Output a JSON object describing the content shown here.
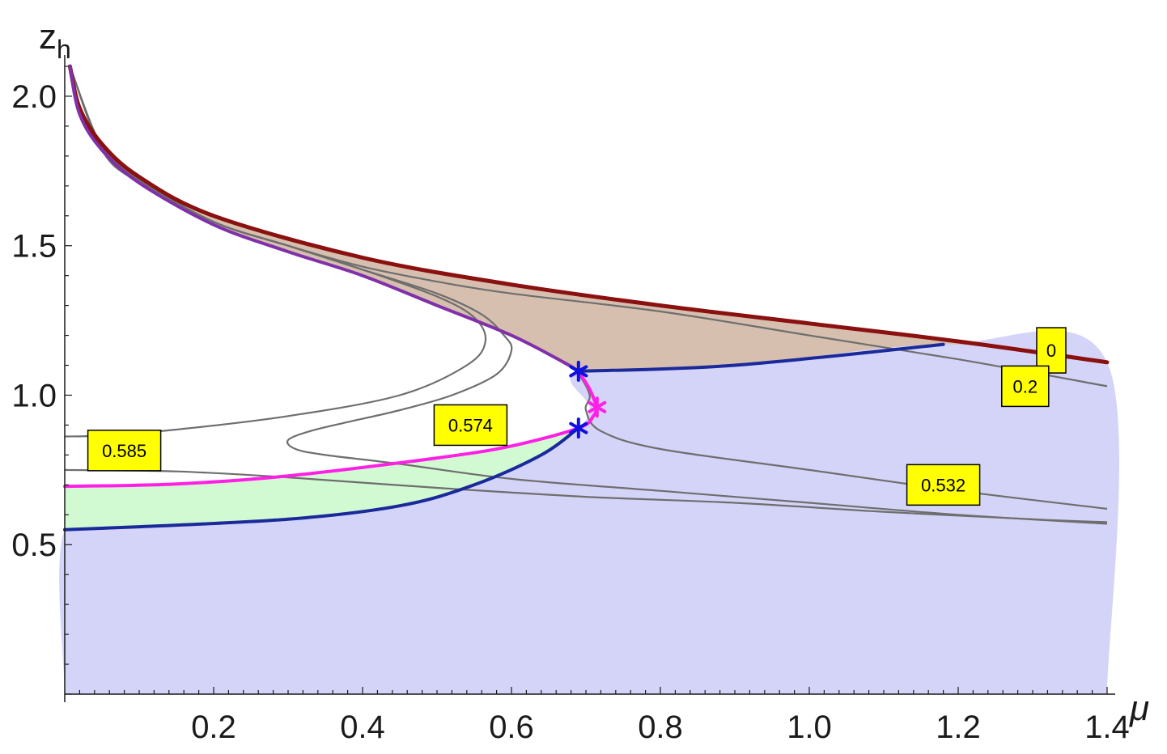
{
  "chart_data": {
    "type": "line",
    "xlabel": "μ",
    "ylabel": "z",
    "ylabel_sub": "h",
    "xlim": [
      0,
      1.4
    ],
    "ylim": [
      0,
      2.1
    ],
    "x_ticks": [
      0.2,
      0.4,
      0.6,
      0.8,
      1.0,
      1.2,
      1.4
    ],
    "x_tick_labels": [
      "0.2",
      "0.4",
      "0.6",
      "0.8",
      "1.0",
      "1.2",
      "1.4"
    ],
    "y_ticks": [
      0.5,
      1.0,
      1.5,
      2.0
    ],
    "y_tick_labels": [
      "0.5",
      "1.0",
      "1.5",
      "2.0"
    ],
    "grid": false,
    "colors": {
      "blue_region": "#d4d4f8",
      "green_region": "#d2fad2",
      "tan_region": "#d6bfae",
      "red_curve": "#8b1010",
      "blue_curve": "#1a2a9a",
      "magenta_curve": "#ff20e6",
      "purple_curve": "#8030a8",
      "contour": "#6e6e6e",
      "blue_marker": "#1010e0",
      "magenta_marker": "#ff20e6",
      "label_bg": "#ffff00"
    },
    "regions": [
      {
        "color": "blue_region",
        "points": [
          [
            0,
            0
          ],
          [
            0,
            0.55
          ],
          [
            0.1,
            0.56
          ],
          [
            0.3,
            0.585
          ],
          [
            0.45,
            0.63
          ],
          [
            0.55,
            0.7
          ],
          [
            0.64,
            0.8
          ],
          [
            0.69,
            0.89
          ],
          [
            0.705,
            0.96
          ],
          [
            0.69,
            1.08
          ],
          [
            0.9,
            1.1
          ],
          [
            1.18,
            1.17
          ],
          [
            1.4,
            1.11
          ],
          [
            1.4,
            0
          ]
        ]
      },
      {
        "color": "green_region",
        "points": [
          [
            0,
            0.55
          ],
          [
            0.1,
            0.56
          ],
          [
            0.3,
            0.585
          ],
          [
            0.45,
            0.63
          ],
          [
            0.55,
            0.7
          ],
          [
            0.64,
            0.8
          ],
          [
            0.69,
            0.89
          ],
          [
            0.6,
            0.83
          ],
          [
            0.5,
            0.79
          ],
          [
            0.3,
            0.73
          ],
          [
            0.15,
            0.703
          ],
          [
            0,
            0.695
          ]
        ]
      },
      {
        "color": "tan_region",
        "points": [
          [
            0.69,
            1.08
          ],
          [
            0.9,
            1.1
          ],
          [
            1.18,
            1.17
          ],
          [
            1.4,
            1.11
          ],
          [
            1.2,
            1.18
          ],
          [
            1.0,
            1.24
          ],
          [
            0.8,
            1.3
          ],
          [
            0.6,
            1.37
          ],
          [
            0.4,
            1.46
          ],
          [
            0.2,
            1.6
          ],
          [
            0.1,
            1.73
          ],
          [
            0.05,
            1.84
          ],
          [
            0.02,
            1.96
          ],
          [
            0.007,
            2.1
          ],
          [
            0.02,
            1.94
          ],
          [
            0.05,
            1.82
          ],
          [
            0.1,
            1.71
          ],
          [
            0.2,
            1.57
          ],
          [
            0.3,
            1.48
          ],
          [
            0.4,
            1.4
          ],
          [
            0.5,
            1.3
          ],
          [
            0.6,
            1.2
          ],
          [
            0.67,
            1.11
          ]
        ]
      }
    ],
    "series": [
      {
        "color": "red_curve",
        "width": 5,
        "points": [
          [
            0.007,
            2.1
          ],
          [
            0.02,
            1.96
          ],
          [
            0.05,
            1.84
          ],
          [
            0.1,
            1.73
          ],
          [
            0.2,
            1.6
          ],
          [
            0.4,
            1.46
          ],
          [
            0.6,
            1.37
          ],
          [
            0.8,
            1.3
          ],
          [
            1.0,
            1.24
          ],
          [
            1.2,
            1.18
          ],
          [
            1.4,
            1.11
          ]
        ]
      },
      {
        "color": "blue_curve",
        "width": 4,
        "points": [
          [
            0,
            0.55
          ],
          [
            0.1,
            0.56
          ],
          [
            0.3,
            0.585
          ],
          [
            0.45,
            0.63
          ],
          [
            0.55,
            0.7
          ],
          [
            0.64,
            0.8
          ],
          [
            0.69,
            0.89
          ]
        ]
      },
      {
        "color": "blue_curve",
        "width": 4,
        "points": [
          [
            0.69,
            1.08
          ],
          [
            0.9,
            1.1
          ],
          [
            1.18,
            1.17
          ]
        ]
      },
      {
        "color": "magenta_curve",
        "width": 4,
        "points": [
          [
            0,
            0.695
          ],
          [
            0.15,
            0.703
          ],
          [
            0.3,
            0.73
          ],
          [
            0.5,
            0.79
          ],
          [
            0.6,
            0.83
          ],
          [
            0.69,
            0.89
          ],
          [
            0.71,
            0.93
          ],
          [
            0.715,
            0.96
          ]
        ]
      },
      {
        "color": "magenta_curve",
        "width": 4,
        "points": [
          [
            0.715,
            0.96
          ],
          [
            0.705,
            1.02
          ],
          [
            0.69,
            1.08
          ]
        ]
      },
      {
        "color": "purple_curve",
        "width": 4,
        "points": [
          [
            0.69,
            1.08
          ],
          [
            0.67,
            1.11
          ],
          [
            0.6,
            1.2
          ],
          [
            0.5,
            1.3
          ],
          [
            0.4,
            1.4
          ],
          [
            0.3,
            1.48
          ],
          [
            0.2,
            1.57
          ],
          [
            0.1,
            1.71
          ],
          [
            0.05,
            1.82
          ],
          [
            0.02,
            1.94
          ],
          [
            0.007,
            2.1
          ]
        ]
      }
    ],
    "contours": [
      {
        "value": "0",
        "points": [
          [
            0.007,
            2.1
          ],
          [
            0.02,
            1.96
          ],
          [
            0.05,
            1.84
          ],
          [
            0.1,
            1.73
          ],
          [
            0.2,
            1.6
          ],
          [
            0.4,
            1.46
          ],
          [
            0.6,
            1.37
          ],
          [
            0.8,
            1.3
          ],
          [
            1.0,
            1.24
          ],
          [
            1.2,
            1.18
          ],
          [
            1.4,
            1.11
          ]
        ]
      },
      {
        "value": "0.2",
        "points": [
          [
            0.007,
            2.1
          ],
          [
            0.02,
            1.95
          ],
          [
            0.05,
            1.83
          ],
          [
            0.1,
            1.72
          ],
          [
            0.2,
            1.58
          ],
          [
            0.3,
            1.5
          ],
          [
            0.4,
            1.43
          ],
          [
            0.5,
            1.38
          ],
          [
            0.6,
            1.34
          ],
          [
            0.8,
            1.28
          ],
          [
            1.0,
            1.2
          ],
          [
            1.2,
            1.12
          ],
          [
            1.4,
            1.03
          ]
        ]
      },
      {
        "value": "0.532",
        "points": [
          [
            0.007,
            2.1
          ],
          [
            0.05,
            1.82
          ],
          [
            0.1,
            1.71
          ],
          [
            0.2,
            1.57
          ],
          [
            0.3,
            1.48
          ],
          [
            0.4,
            1.4
          ],
          [
            0.5,
            1.3
          ],
          [
            0.6,
            1.2
          ],
          [
            0.67,
            1.11
          ],
          [
            0.69,
            1.07
          ],
          [
            0.705,
            1.0
          ],
          [
            0.7,
            0.95
          ],
          [
            0.72,
            0.88
          ],
          [
            0.8,
            0.82
          ],
          [
            1.0,
            0.75
          ],
          [
            1.2,
            0.68
          ],
          [
            1.4,
            0.62
          ]
        ]
      },
      {
        "value": "0.574",
        "points": [
          [
            0.007,
            2.1
          ],
          [
            0.05,
            1.83
          ],
          [
            0.1,
            1.72
          ],
          [
            0.2,
            1.58
          ],
          [
            0.3,
            1.5
          ],
          [
            0.4,
            1.42
          ],
          [
            0.5,
            1.34
          ],
          [
            0.56,
            1.27
          ],
          [
            0.59,
            1.2
          ],
          [
            0.6,
            1.15
          ],
          [
            0.58,
            1.07
          ],
          [
            0.52,
            1.0
          ],
          [
            0.45,
            0.95
          ],
          [
            0.38,
            0.91
          ],
          [
            0.33,
            0.88
          ],
          [
            0.3,
            0.85
          ],
          [
            0.31,
            0.82
          ],
          [
            0.35,
            0.8
          ],
          [
            0.45,
            0.77
          ],
          [
            0.6,
            0.72
          ],
          [
            0.8,
            0.68
          ],
          [
            1.0,
            0.64
          ],
          [
            1.2,
            0.6
          ],
          [
            1.4,
            0.57
          ]
        ]
      },
      {
        "value": "0.585",
        "points": [
          [
            0.007,
            2.1
          ],
          [
            0.05,
            1.83
          ],
          [
            0.1,
            1.72
          ],
          [
            0.2,
            1.58
          ],
          [
            0.3,
            1.5
          ],
          [
            0.4,
            1.42
          ],
          [
            0.5,
            1.33
          ],
          [
            0.55,
            1.26
          ],
          [
            0.565,
            1.18
          ],
          [
            0.54,
            1.1
          ],
          [
            0.45,
            1.0
          ],
          [
            0.3,
            0.93
          ],
          [
            0.15,
            0.885
          ],
          [
            0.05,
            0.865
          ],
          [
            0,
            0.862
          ]
        ]
      },
      {
        "value": "0.585b",
        "points": [
          [
            0,
            0.75
          ],
          [
            0.15,
            0.745
          ],
          [
            0.3,
            0.725
          ],
          [
            0.5,
            0.69
          ],
          [
            0.7,
            0.66
          ],
          [
            0.9,
            0.64
          ],
          [
            1.1,
            0.61
          ],
          [
            1.3,
            0.585
          ],
          [
            1.4,
            0.575
          ]
        ]
      }
    ],
    "contour_labels": [
      {
        "text": "0",
        "x": 1.325,
        "y": 1.15
      },
      {
        "text": "0.2",
        "x": 1.29,
        "y": 1.03
      },
      {
        "text": "0.532",
        "x": 1.18,
        "y": 0.7
      },
      {
        "text": "0.574",
        "x": 0.545,
        "y": 0.9
      },
      {
        "text": "0.585",
        "x": 0.08,
        "y": 0.815
      }
    ],
    "markers": [
      {
        "color": "blue_marker",
        "x": 0.69,
        "y": 1.08
      },
      {
        "color": "blue_marker",
        "x": 0.69,
        "y": 0.89
      },
      {
        "color": "magenta_marker",
        "x": 0.715,
        "y": 0.96
      }
    ]
  }
}
